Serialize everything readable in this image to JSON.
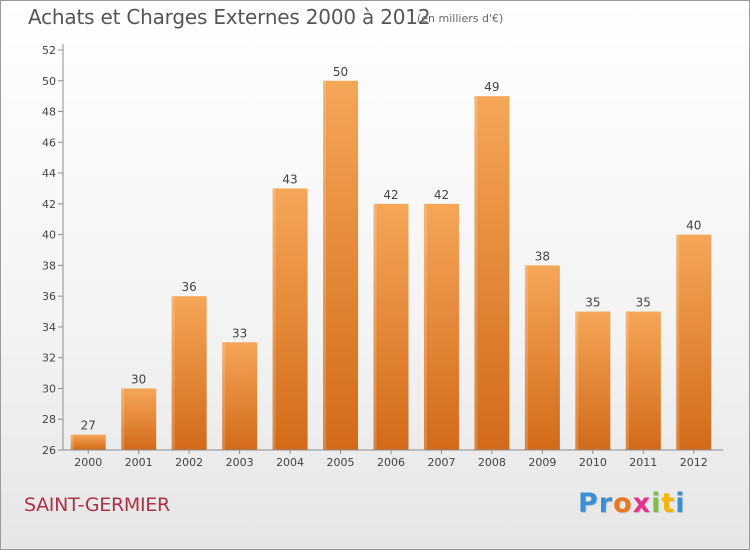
{
  "header": {
    "title": "Achats et Charges Externes 2000 à 2012",
    "unit_note": "(en milliers d'€)"
  },
  "footer": {
    "place": "SAINT-GERMIER",
    "logo_text": "Proxiti",
    "logo_colors": [
      "#3a8fd6",
      "#3a8fd6",
      "#e87722",
      "#e8318a",
      "#7cc043",
      "#f2b600",
      "#3a8fd6"
    ]
  },
  "colors": {
    "bar_top": "#f5a657",
    "bar_bottom": "#d26a18",
    "axis": "#8c8c8c",
    "grid": "#d9d9d9"
  },
  "chart_data": {
    "type": "bar",
    "categories": [
      "2000",
      "2001",
      "2002",
      "2003",
      "2004",
      "2005",
      "2006",
      "2007",
      "2008",
      "2009",
      "2010",
      "2011",
      "2012"
    ],
    "values": [
      27,
      30,
      36,
      33,
      43,
      50,
      42,
      42,
      49,
      38,
      35,
      35,
      40
    ],
    "title": "Achats et Charges Externes 2000 à 2012",
    "subtitle": "(en milliers d'€)",
    "xlabel": "",
    "ylabel": "",
    "ylim": [
      26,
      52
    ],
    "yticks": [
      26,
      28,
      30,
      32,
      34,
      36,
      38,
      40,
      42,
      44,
      46,
      48,
      50,
      52
    ],
    "grid": false,
    "legend": "none"
  }
}
